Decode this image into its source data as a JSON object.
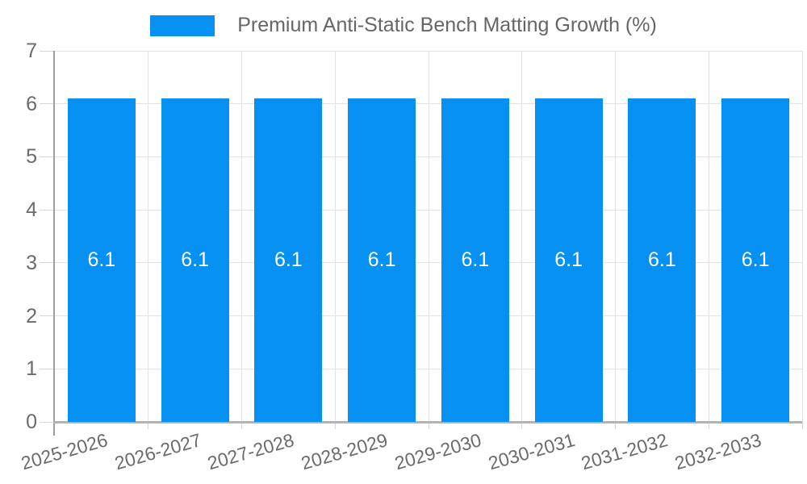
{
  "chart_data": {
    "type": "bar",
    "title": "Premium Anti-Static Bench Matting Growth (%)",
    "categories": [
      "2025-2026",
      "2026-2027",
      "2027-2028",
      "2028-2029",
      "2029-2030",
      "2030-2031",
      "2031-2032",
      "2032-2033"
    ],
    "values": [
      6.1,
      6.1,
      6.1,
      6.1,
      6.1,
      6.1,
      6.1,
      6.1
    ],
    "data_labels": [
      "6.1",
      "6.1",
      "6.1",
      "6.1",
      "6.1",
      "6.1",
      "6.1",
      "6.1"
    ],
    "xlabel": "",
    "ylabel": "",
    "ylim": [
      0,
      7
    ],
    "y_ticks": [
      0,
      1,
      2,
      3,
      4,
      5,
      6,
      7
    ],
    "grid": true,
    "legend_position": "top-center",
    "legend_items": [
      {
        "label": "Premium Anti-Static Bench Matting Growth (%)",
        "color": "#0590f2"
      }
    ],
    "colors": {
      "bar": "#0590f2",
      "grid": "#e3e3e3",
      "y_axis": "#9e9e9e",
      "x_axis": "#b3b3b3",
      "tick": "#d6d6d6",
      "text": "#6b6b6b",
      "bar_label_text": "#ffffff",
      "background": "#ffffff"
    }
  }
}
